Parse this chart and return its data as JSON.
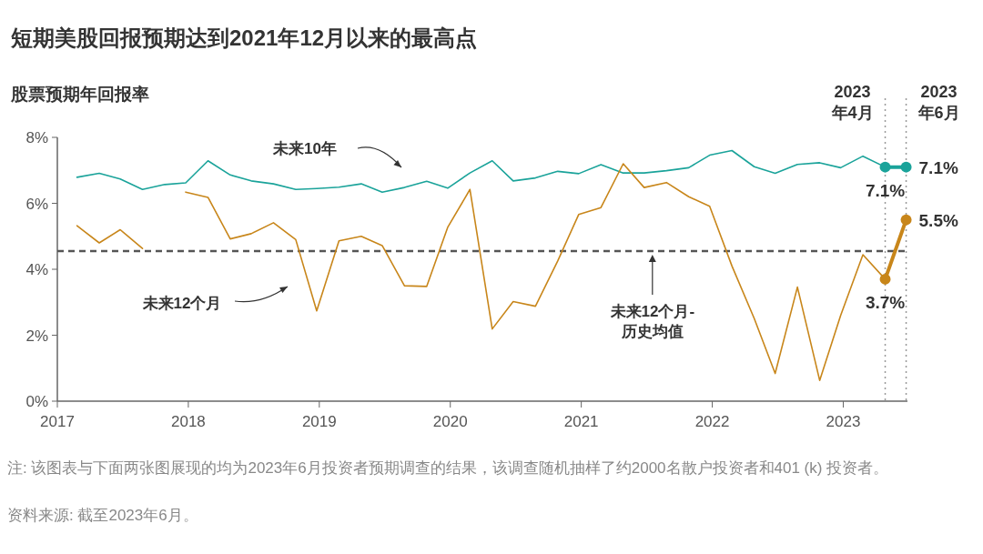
{
  "chart_data": {
    "type": "line",
    "title": "短期美股回报预期达到2021年12月以来的最高点",
    "subtitle": "股票预期年回报率",
    "x": [
      2017.15,
      2017.32,
      2017.48,
      2017.65,
      2017.82,
      2017.98,
      2018.15,
      2018.32,
      2018.48,
      2018.65,
      2018.82,
      2018.98,
      2019.15,
      2019.32,
      2019.48,
      2019.65,
      2019.82,
      2019.98,
      2020.15,
      2020.32,
      2020.48,
      2020.65,
      2020.82,
      2020.98,
      2021.15,
      2021.32,
      2021.48,
      2021.65,
      2021.82,
      2021.98,
      2022.15,
      2022.32,
      2022.48,
      2022.65,
      2022.82,
      2022.98,
      2023.15,
      2023.32,
      2023.48
    ],
    "series": [
      {
        "color": "#1aa39a",
        "values": [
          6.79,
          6.91,
          6.74,
          6.42,
          6.57,
          6.62,
          7.29,
          6.86,
          6.68,
          6.59,
          6.42,
          6.45,
          6.49,
          6.59,
          6.34,
          6.48,
          6.67,
          6.46,
          6.92,
          7.29,
          6.68,
          6.77,
          6.97,
          6.9,
          7.17,
          6.92,
          6.92,
          6.99,
          7.08,
          7.46,
          7.6,
          7.11,
          6.91,
          7.18,
          7.23,
          7.08,
          7.43,
          7.1,
          null
        ]
      },
      {
        "color": "#c8861a",
        "values": [
          5.32,
          4.8,
          5.2,
          4.63,
          null,
          6.34,
          6.18,
          4.92,
          5.08,
          5.41,
          4.9,
          2.74,
          4.86,
          5.0,
          4.72,
          3.5,
          3.48,
          5.27,
          6.42,
          2.19,
          3.02,
          2.88,
          4.25,
          5.66,
          5.87,
          7.2,
          6.48,
          6.63,
          6.2,
          5.91,
          4.1,
          2.51,
          0.84,
          3.46,
          0.63,
          2.6,
          4.44,
          3.7,
          null
        ]
      },
      {
        "color": "#1aa39a",
        "marker": "circle",
        "values": [
          null,
          null,
          null,
          null,
          null,
          null,
          null,
          null,
          null,
          null,
          null,
          null,
          null,
          null,
          null,
          null,
          null,
          null,
          null,
          null,
          null,
          null,
          null,
          null,
          null,
          null,
          null,
          null,
          null,
          null,
          null,
          null,
          null,
          null,
          null,
          null,
          null,
          7.1,
          7.1
        ],
        "value_labels": [
          null,
          null,
          null,
          null,
          null,
          null,
          null,
          null,
          null,
          null,
          null,
          null,
          null,
          null,
          null,
          null,
          null,
          null,
          null,
          null,
          null,
          null,
          null,
          null,
          null,
          null,
          null,
          null,
          null,
          null,
          null,
          null,
          null,
          null,
          null,
          null,
          null,
          "7.1%",
          "7.1%"
        ]
      },
      {
        "color": "#c8861a",
        "marker": "circle",
        "values": [
          null,
          null,
          null,
          null,
          null,
          null,
          null,
          null,
          null,
          null,
          null,
          null,
          null,
          null,
          null,
          null,
          null,
          null,
          null,
          null,
          null,
          null,
          null,
          null,
          null,
          null,
          null,
          null,
          null,
          null,
          null,
          null,
          null,
          null,
          null,
          null,
          null,
          3.7,
          5.5
        ],
        "value_labels": [
          null,
          null,
          null,
          null,
          null,
          null,
          null,
          null,
          null,
          null,
          null,
          null,
          null,
          null,
          null,
          null,
          null,
          null,
          null,
          null,
          null,
          null,
          null,
          null,
          null,
          null,
          null,
          null,
          null,
          null,
          null,
          null,
          null,
          null,
          null,
          null,
          null,
          "3.7%",
          "5.5%"
        ]
      }
    ],
    "xlim": [
      2017,
      2023.49
    ],
    "xticks": [
      2017,
      2018,
      2019,
      2020,
      2021,
      2022,
      2023
    ],
    "ylim": [
      0,
      8
    ],
    "yticks": [
      {
        "value": 0,
        "label": "0%"
      },
      {
        "value": 2,
        "label": "2%"
      },
      {
        "value": 4,
        "label": "4%"
      },
      {
        "value": 6,
        "label": "6%"
      },
      {
        "value": 8,
        "label": "8%"
      }
    ],
    "grid": false,
    "ref_lines": [
      {
        "axis": "y",
        "value": 4.55,
        "label": "未来12个月-\n历史均值",
        "color": "#555555",
        "line_style": "dashed"
      },
      {
        "axis": "x",
        "value": 2023.32,
        "label": "2023\n年4月",
        "color": "#999999",
        "line_style": "dotted"
      },
      {
        "axis": "x",
        "value": 2023.48,
        "label": "2023\n年6月",
        "color": "#999999",
        "line_style": "dotted"
      }
    ],
    "annotations": [
      "未来10年",
      "未来12个月",
      "注: 该图表与下面两张图展现的均为2023年6月投资者预期调查的结果，该调查随机抽样了约2000名散户投资者和401 (k) 投资者。",
      "资料来源: 截至2023年6月。"
    ]
  }
}
